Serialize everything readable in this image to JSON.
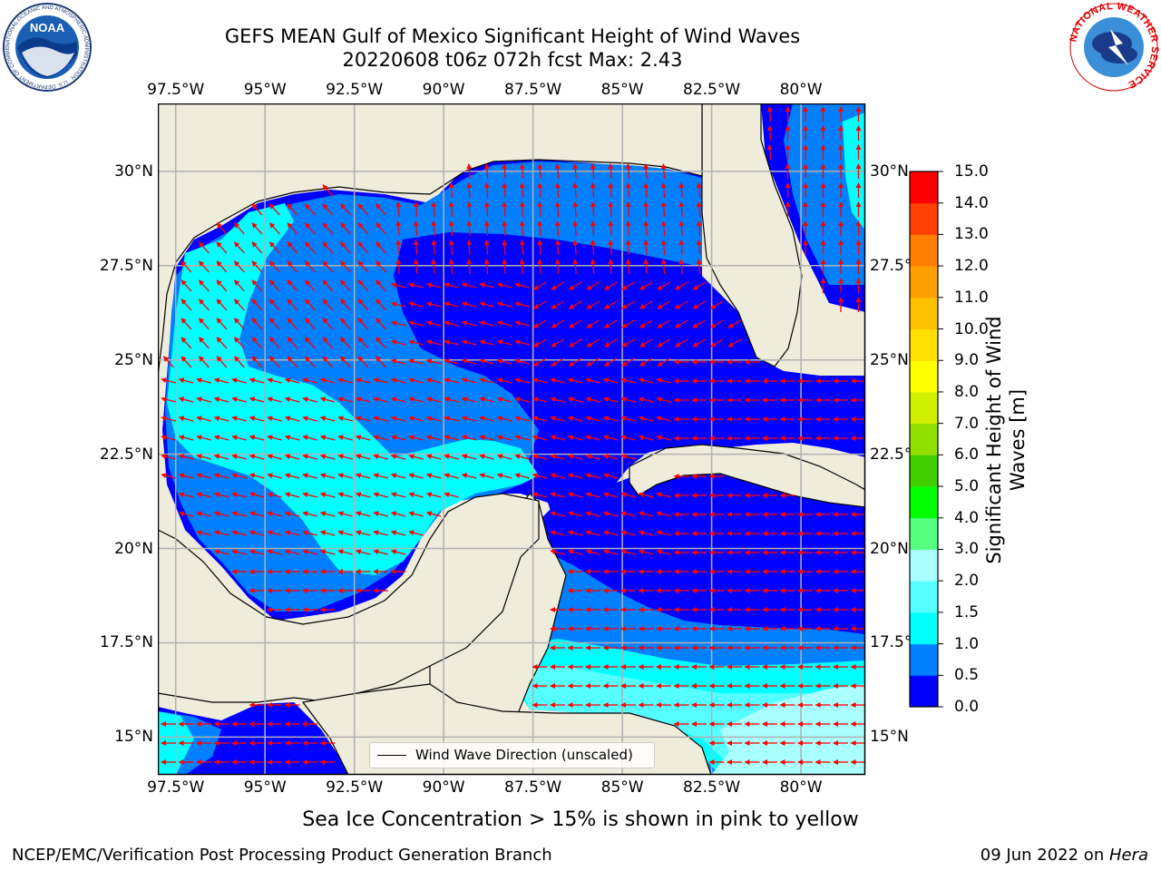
{
  "header": {
    "title_line1": "GEFS MEAN Gulf of Mexico Significant Height of Wind Waves",
    "title_line2": "20220608 t06z 072h fcst   Max: 2.43"
  },
  "logos": {
    "left_text": "NOAA",
    "left_ring_text": "NATIONAL OCEANIC AND ATMOSPHERIC ADMINISTRATION · U.S. DEPARTMENT OF COMMERCE",
    "right_ring_text": "NATIONAL WEATHER SERVICE"
  },
  "map": {
    "lon_labels": [
      "97.5°W",
      "95°W",
      "92.5°W",
      "90°W",
      "87.5°W",
      "85°W",
      "82.5°W",
      "80°W"
    ],
    "lat_labels": [
      "30°N",
      "27.5°N",
      "25°N",
      "22.5°N",
      "20°N",
      "17.5°N",
      "15°N"
    ],
    "lon_range": [
      -98,
      -78.2
    ],
    "lat_range": [
      14,
      31.8
    ],
    "legend_label": "Wind Wave Direction (unscaled)",
    "colors": {
      "land": "#efecdc",
      "grid": "#b0b0b0",
      "arrow": "#ff0000"
    }
  },
  "colorbar": {
    "title": "Significant Height of Wind Waves [m]",
    "tick_labels": [
      "0.0",
      "0.5",
      "1.0",
      "1.5",
      "2.0",
      "3.0",
      "4.0",
      "5.0",
      "6.0",
      "7.0",
      "8.0",
      "9.0",
      "10.0",
      "11.0",
      "12.0",
      "13.0",
      "14.0",
      "15.0"
    ],
    "colors": [
      "#0000ff",
      "#0080ff",
      "#00ffff",
      "#55ffff",
      "#aaffff",
      "#55ff80",
      "#00ff00",
      "#40d000",
      "#90e000",
      "#d0f000",
      "#ffff00",
      "#ffe000",
      "#ffc000",
      "#ffa000",
      "#ff8000",
      "#ff4000",
      "#ff0000"
    ]
  },
  "footer": {
    "sea_ice_note": "Sea Ice Concentration > 15% is shown in pink to yellow",
    "left": "NCEP/EMC/Verification Post Processing Product Generation Branch",
    "right_date": "09 Jun 2022 on ",
    "right_machine": "Hera"
  }
}
